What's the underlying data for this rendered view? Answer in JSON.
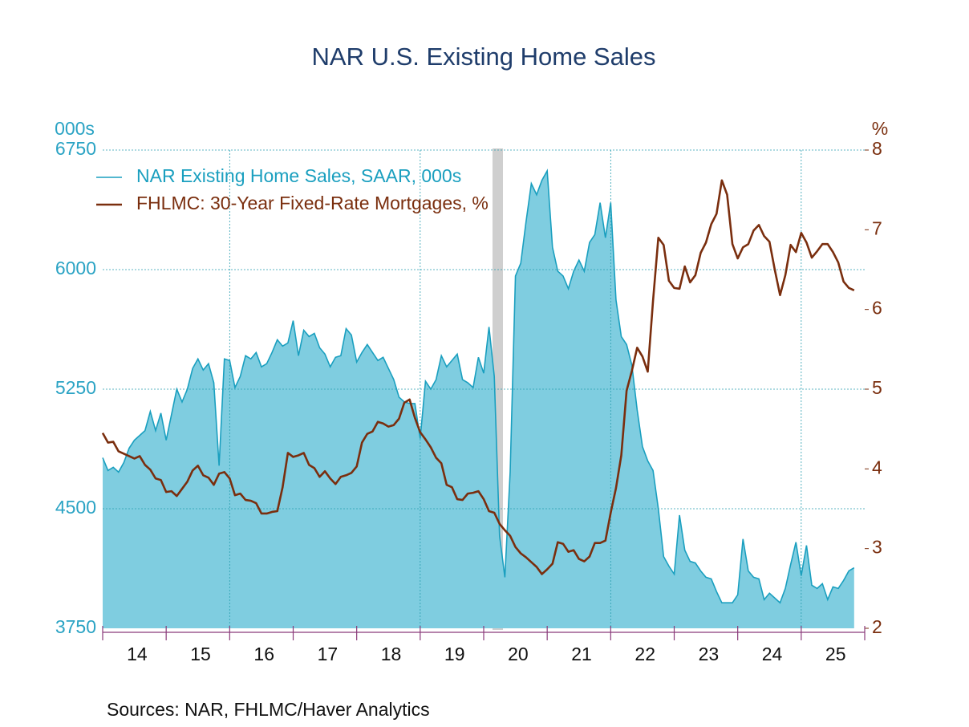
{
  "chart_data": {
    "type": "line",
    "title": "NAR U.S. Existing Home Sales",
    "ylabel": "000s",
    "y2label": "%",
    "source": "Sources:   NAR, FHLMC/Haver Analytics",
    "legend": "upper left",
    "grid": true,
    "categories": [
      null,
      null,
      null,
      null,
      null,
      null,
      "14",
      null,
      null,
      null,
      null,
      null,
      null,
      null,
      null,
      null,
      null,
      null,
      "15",
      null,
      null,
      null,
      null,
      null,
      null,
      null,
      null,
      null,
      null,
      null,
      "16",
      null,
      null,
      null,
      null,
      null,
      null,
      null,
      null,
      null,
      null,
      null,
      "17",
      null,
      null,
      null,
      null,
      null,
      null,
      null,
      null,
      null,
      null,
      null,
      "18",
      null,
      null,
      null,
      null,
      null,
      null,
      null,
      null,
      null,
      null,
      null,
      "19",
      null,
      null,
      null,
      null,
      null,
      null,
      null,
      null,
      null,
      null,
      null,
      "20",
      null,
      null,
      null,
      null,
      null,
      null,
      null,
      null,
      null,
      null,
      null,
      "21",
      null,
      null,
      null,
      null,
      null,
      null,
      null,
      null,
      null,
      null,
      null,
      "22",
      null,
      null,
      null,
      null,
      null,
      null,
      null,
      null,
      null,
      null,
      null,
      "23",
      null,
      null,
      null,
      null,
      null,
      null,
      null,
      null,
      null,
      null,
      null,
      "24",
      null,
      null,
      null,
      null,
      null,
      null,
      null,
      null,
      null,
      null,
      null,
      "25",
      null,
      null,
      null,
      null
    ],
    "ylim": [
      3750,
      6750
    ],
    "yticks": [
      3750,
      4500,
      5250,
      6000,
      6750
    ],
    "y2lim": [
      2,
      8
    ],
    "y2ticks": [
      2,
      3,
      4,
      5,
      6,
      7,
      8
    ],
    "series": [
      {
        "name": "NAR Existing Home Sales, SAAR, 000s",
        "type": "area",
        "color": "#1a9fbf",
        "fill": "#7fcde0",
        "values": [
          4820,
          4740,
          4760,
          4730,
          4790,
          4880,
          4930,
          4960,
          4990,
          5110,
          4990,
          5100,
          4930,
          5090,
          5250,
          5170,
          5250,
          5380,
          5440,
          5370,
          5410,
          5290,
          4770,
          5440,
          5430,
          5260,
          5330,
          5460,
          5440,
          5480,
          5390,
          5410,
          5480,
          5560,
          5520,
          5540,
          5680,
          5460,
          5620,
          5580,
          5600,
          5510,
          5470,
          5390,
          5450,
          5460,
          5630,
          5590,
          5420,
          5480,
          5530,
          5480,
          5430,
          5450,
          5380,
          5310,
          5200,
          5170,
          5160,
          5160,
          4940,
          5300,
          5250,
          5310,
          5460,
          5390,
          5430,
          5470,
          5310,
          5290,
          5260,
          5450,
          5350,
          5640,
          5330,
          4330,
          4070,
          4730,
          5960,
          6040,
          6300,
          6540,
          6470,
          6560,
          6620,
          6140,
          5990,
          5960,
          5880,
          5990,
          6060,
          5990,
          6170,
          6220,
          6420,
          6200,
          6420,
          5810,
          5580,
          5530,
          5400,
          5120,
          4890,
          4800,
          4740,
          4500,
          4200,
          4140,
          4090,
          4460,
          4240,
          4170,
          4160,
          4110,
          4070,
          4060,
          3980,
          3910,
          3910,
          3910,
          3960,
          4310,
          4110,
          4070,
          4060,
          3930,
          3970,
          3940,
          3910,
          4000,
          4150,
          4290,
          4080,
          4270,
          4020,
          4000,
          4030,
          3930,
          4010,
          4000,
          4050,
          4110,
          4130
        ]
      },
      {
        "name": "FHLMC: 30-Year Fixed-Rate Mortgages, %",
        "type": "line",
        "axis": "y2",
        "color": "#7a2e0e",
        "values": [
          4.45,
          4.33,
          4.34,
          4.22,
          4.19,
          4.16,
          4.13,
          4.16,
          4.05,
          3.99,
          3.88,
          3.86,
          3.71,
          3.72,
          3.66,
          3.75,
          3.84,
          3.98,
          4.04,
          3.92,
          3.89,
          3.8,
          3.94,
          3.96,
          3.88,
          3.67,
          3.69,
          3.61,
          3.6,
          3.57,
          3.44,
          3.44,
          3.46,
          3.47,
          3.77,
          4.2,
          4.15,
          4.17,
          4.2,
          4.05,
          4.01,
          3.9,
          3.97,
          3.88,
          3.81,
          3.9,
          3.92,
          3.95,
          4.03,
          4.33,
          4.44,
          4.47,
          4.59,
          4.57,
          4.53,
          4.55,
          4.63,
          4.83,
          4.87,
          4.64,
          4.46,
          4.37,
          4.27,
          4.14,
          4.07,
          3.8,
          3.77,
          3.62,
          3.61,
          3.69,
          3.7,
          3.72,
          3.62,
          3.47,
          3.45,
          3.31,
          3.23,
          3.16,
          3.02,
          2.94,
          2.89,
          2.83,
          2.77,
          2.68,
          2.74,
          2.81,
          3.08,
          3.06,
          2.96,
          2.98,
          2.87,
          2.84,
          2.9,
          3.07,
          3.07,
          3.1,
          3.45,
          3.76,
          4.17,
          4.98,
          5.23,
          5.52,
          5.41,
          5.22,
          6.11,
          6.9,
          6.81,
          6.36,
          6.27,
          6.26,
          6.54,
          6.34,
          6.43,
          6.71,
          6.84,
          7.07,
          7.2,
          7.62,
          7.44,
          6.82,
          6.64,
          6.78,
          6.82,
          6.99,
          7.06,
          6.92,
          6.85,
          6.5,
          6.18,
          6.43,
          6.81,
          6.72,
          6.96,
          6.84,
          6.65,
          6.73,
          6.82,
          6.82,
          6.72,
          6.59,
          6.35,
          6.27,
          6.24
        ]
      }
    ]
  }
}
